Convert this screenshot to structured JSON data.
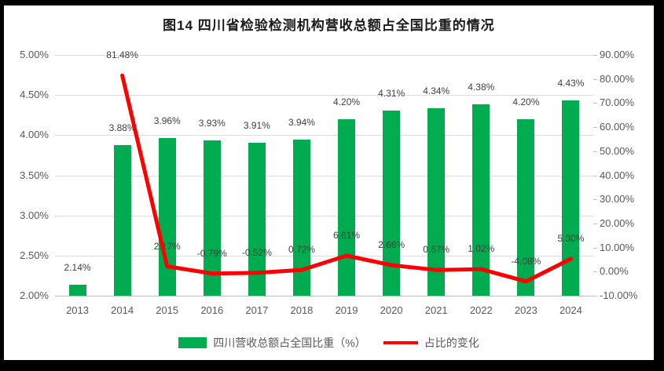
{
  "chart_data": {
    "type": "combo-bar-line",
    "title": "图14  四川省检验检测机构营收总额占全国比重的情况",
    "categories": [
      "2013",
      "2014",
      "2015",
      "2016",
      "2017",
      "2018",
      "2019",
      "2020",
      "2021",
      "2022",
      "2023",
      "2024"
    ],
    "series": [
      {
        "name": "四川营收总额占全国比重（%）",
        "type": "bar",
        "axis": "left",
        "color": "#00AC4F",
        "values": [
          2.14,
          3.88,
          3.96,
          3.93,
          3.91,
          3.94,
          4.2,
          4.31,
          4.34,
          4.38,
          4.2,
          4.43
        ],
        "labels": [
          "2.14%",
          "3.88%",
          "3.96%",
          "3.93%",
          "3.91%",
          "3.94%",
          "4.20%",
          "4.31%",
          "4.34%",
          "4.38%",
          "4.20%",
          "4.43%"
        ]
      },
      {
        "name": "占比的变化",
        "type": "line",
        "axis": "right",
        "color": "#FF0000",
        "values": [
          null,
          81.48,
          2.17,
          -0.79,
          -0.52,
          0.72,
          6.61,
          2.66,
          0.67,
          1.02,
          -4.08,
          5.3
        ],
        "labels": [
          null,
          "81.48%",
          "2.17%",
          "-0.79%",
          "-0.52%",
          "0.72%",
          "6.61%",
          "2.66%",
          "0.67%",
          "1.02%",
          "-4.08%",
          "5.30%"
        ]
      }
    ],
    "left_axis": {
      "min": 2.0,
      "max": 5.0,
      "tick_labels": [
        "5.00%",
        "4.50%",
        "4.00%",
        "3.50%",
        "3.00%",
        "2.50%",
        "2.00%"
      ]
    },
    "right_axis": {
      "min": -10.0,
      "max": 90.0,
      "tick_labels": [
        "90.00%",
        "80.00%",
        "70.00%",
        "60.00%",
        "50.00%",
        "40.00%",
        "30.00%",
        "20.00%",
        "10.00%",
        "0.00%",
        "-10.00%"
      ]
    },
    "grid": true,
    "legend_position": "bottom",
    "colors": {
      "bar": "#00AC4F",
      "line": "#FF0000",
      "grid": "#DCDCDC",
      "axis_line": "#BFBFBF",
      "tick_text": "#595959",
      "data_label_text": "#3F3F3F",
      "title_text": "#1A1A1A",
      "frame": "#000000",
      "surface": "#FFFFFF"
    }
  }
}
